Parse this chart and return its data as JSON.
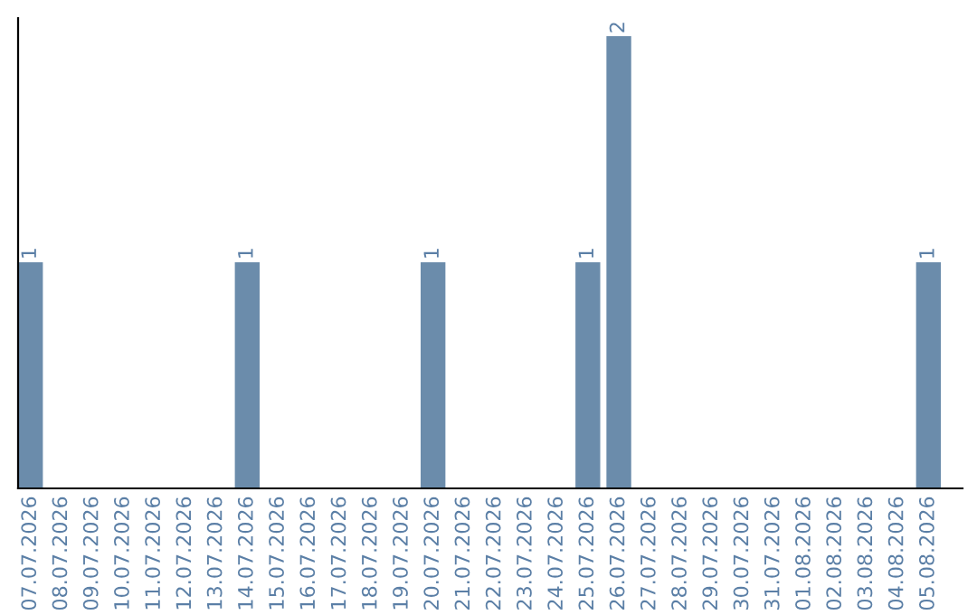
{
  "chart_data": {
    "type": "bar",
    "categories": [
      "07.07.2026",
      "08.07.2026",
      "09.07.2026",
      "10.07.2026",
      "11.07.2026",
      "12.07.2026",
      "13.07.2026",
      "14.07.2026",
      "15.07.2026",
      "16.07.2026",
      "17.07.2026",
      "18.07.2026",
      "19.07.2026",
      "20.07.2026",
      "21.07.2026",
      "22.07.2026",
      "23.07.2026",
      "24.07.2026",
      "25.07.2026",
      "26.07.2026",
      "27.07.2026",
      "28.07.2026",
      "29.07.2026",
      "30.07.2026",
      "31.07.2026",
      "01.08.2026",
      "02.08.2026",
      "03.08.2026",
      "04.08.2026",
      "05.08.2026"
    ],
    "values": [
      1,
      0,
      0,
      0,
      0,
      0,
      0,
      1,
      0,
      0,
      0,
      0,
      0,
      1,
      0,
      0,
      0,
      0,
      1,
      2,
      0,
      0,
      0,
      0,
      0,
      0,
      0,
      0,
      0,
      1
    ],
    "value_labels": [
      "1",
      null,
      null,
      null,
      null,
      null,
      null,
      "1",
      null,
      null,
      null,
      null,
      null,
      "1",
      null,
      null,
      null,
      null,
      "1",
      "2",
      null,
      null,
      null,
      null,
      null,
      null,
      null,
      null,
      null,
      "1"
    ],
    "color": "#6b8cab",
    "tick_labels": "x",
    "grid": false,
    "legend": false
  }
}
